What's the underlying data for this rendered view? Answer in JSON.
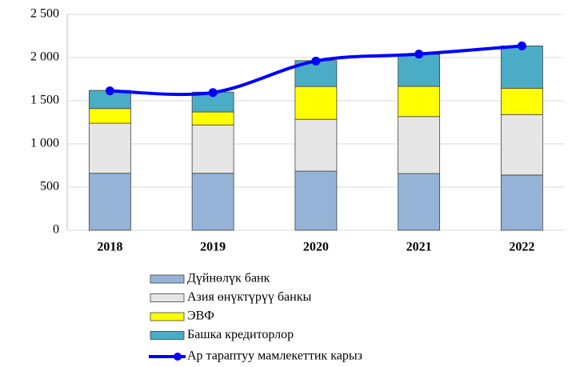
{
  "chart_data": {
    "type": "stacked_bar_line",
    "categories": [
      "2018",
      "2019",
      "2020",
      "2021",
      "2022"
    ],
    "series": [
      {
        "name": "Дүйнөлүк банк",
        "color": "#95b3d7",
        "values": [
          660,
          660,
          685,
          657,
          640
        ]
      },
      {
        "name": "Азия өнүктүрүү банкы",
        "color": "#e6e6e6",
        "values": [
          580,
          560,
          600,
          660,
          700
        ]
      },
      {
        "name": "ЭВФ",
        "color": "#ffff00",
        "values": [
          170,
          150,
          380,
          350,
          305
        ]
      },
      {
        "name": "Башка кредиторлор",
        "color": "#4bacc6",
        "values": [
          210,
          230,
          300,
          370,
          490
        ]
      },
      {
        "name": "Ар тараптуу мамлекеттик карыз",
        "color": "#0000ff",
        "type": "line",
        "values": [
          1615,
          1595,
          1960,
          2040,
          2135
        ]
      }
    ],
    "ylim": [
      0,
      2500
    ],
    "yticks": [
      0,
      500,
      {
        "value": 1000,
        "label": "1 000"
      },
      {
        "value": 1500,
        "label": "1 500"
      },
      {
        "value": 2000,
        "label": "2 000"
      },
      {
        "value": 2500,
        "label": "2 500"
      }
    ],
    "grid": true,
    "legend": "bottom"
  }
}
